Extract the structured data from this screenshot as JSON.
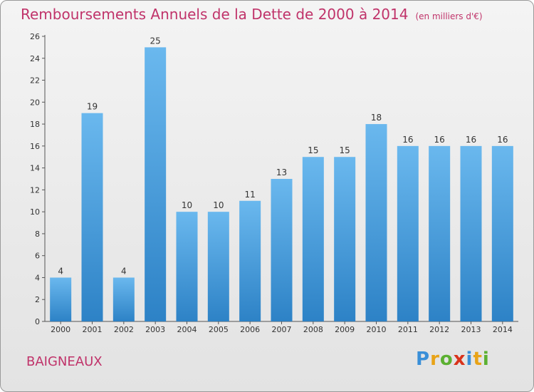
{
  "header": {
    "title": "Remboursements Annuels de la Dette de 2000 à 2014",
    "unit": "(en milliers d'€)"
  },
  "footer": {
    "town": "BAIGNEAUX",
    "logo": [
      "P",
      "r",
      "o",
      "x",
      "i",
      "t",
      "i"
    ]
  },
  "colors": {
    "title": "#c0336a",
    "bar_top": "#6ab8ee",
    "bar_bottom": "#2d82c6",
    "logo": [
      "#3a8fd8",
      "#e8a317",
      "#5bb031",
      "#d9331b",
      "#3a8fd8",
      "#e8a317",
      "#5bb031"
    ]
  },
  "chart_data": {
    "type": "bar",
    "categories": [
      "2000",
      "2001",
      "2002",
      "2003",
      "2004",
      "2005",
      "2006",
      "2007",
      "2008",
      "2009",
      "2010",
      "2011",
      "2012",
      "2013",
      "2014"
    ],
    "values": [
      4,
      19,
      4,
      25,
      10,
      10,
      11,
      13,
      15,
      15,
      18,
      16,
      16,
      16,
      16
    ],
    "data_labels": [
      "4",
      "19",
      "4",
      "25",
      "10",
      "10",
      "11",
      "13",
      "15",
      "15",
      "18",
      "16",
      "16",
      "16",
      "16"
    ],
    "yticks": [
      "0",
      "2",
      "4",
      "6",
      "8",
      "10",
      "12",
      "14",
      "16",
      "18",
      "20",
      "22",
      "24",
      "26"
    ],
    "ylim": [
      0,
      26
    ],
    "grid": false
  }
}
